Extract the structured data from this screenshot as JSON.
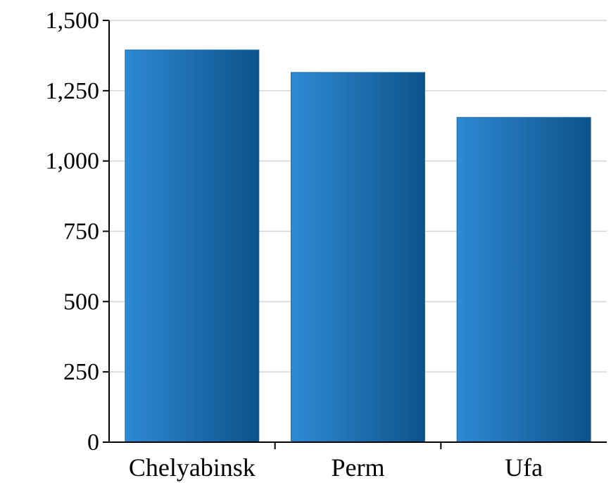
{
  "chart_data": {
    "type": "bar",
    "title": "",
    "xlabel": "",
    "ylabel": "",
    "categories": [
      "Chelyabinsk",
      "Perm",
      "Ufa"
    ],
    "values": [
      1395,
      1315,
      1155
    ],
    "ylim": [
      0,
      1500
    ],
    "yticks": [
      0,
      250,
      500,
      750,
      1000,
      1250,
      1500
    ],
    "ytick_labels": [
      "0",
      "250",
      "500",
      "750",
      "1,000",
      "1,250",
      "1,500"
    ],
    "grid": true,
    "legend": "none",
    "bar_colors": {
      "light": "#2e8ad4",
      "dark": "#0d5289"
    }
  }
}
